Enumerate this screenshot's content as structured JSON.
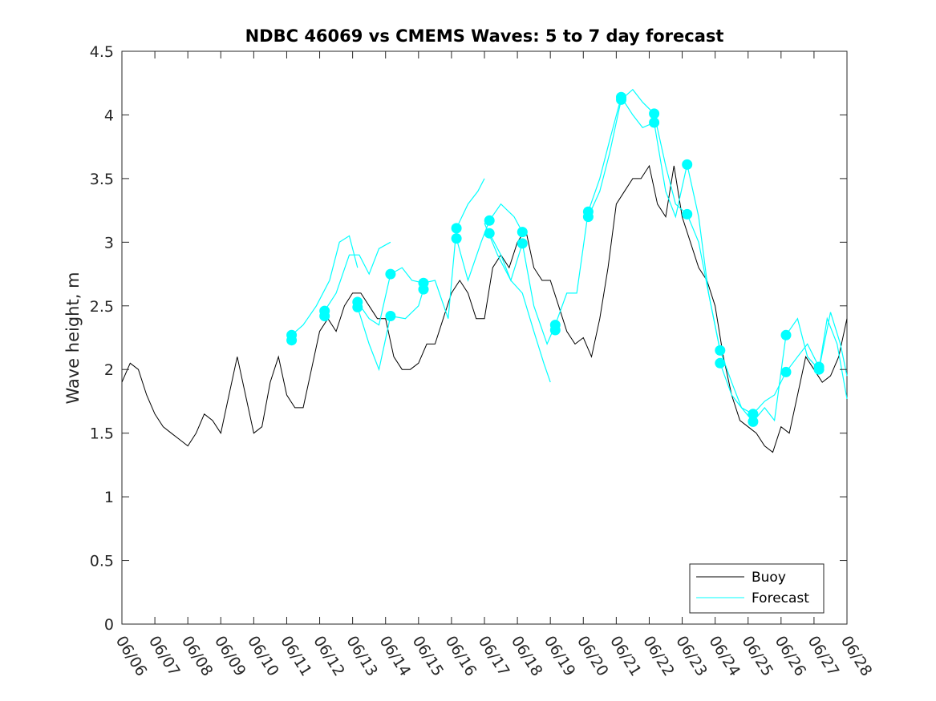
{
  "chart_data": {
    "type": "line",
    "title": "NDBC 46069 vs CMEMS Waves: 5 to 7 day forecast",
    "xlabel": "",
    "ylabel": "Wave height, m",
    "xlim": [
      "06/06",
      "06/28"
    ],
    "ylim": [
      0,
      4.5
    ],
    "x_ticks": [
      "06/06",
      "06/07",
      "06/08",
      "06/09",
      "06/10",
      "06/11",
      "06/12",
      "06/13",
      "06/14",
      "06/15",
      "06/16",
      "06/17",
      "06/18",
      "06/19",
      "06/20",
      "06/21",
      "06/22",
      "06/23",
      "06/24",
      "06/25",
      "06/26",
      "06/27",
      "06/28"
    ],
    "y_ticks": [
      "0",
      "0.5",
      "1",
      "1.5",
      "2",
      "2.5",
      "3",
      "3.5",
      "4",
      "4.5"
    ],
    "grid": false,
    "legend_position": "bottom-right",
    "colors": {
      "buoy": "#000000",
      "forecast": "#00FFFF",
      "axes": "#262626"
    },
    "series": [
      {
        "name": "Buoy",
        "x": [
          0,
          0.25,
          0.5,
          0.75,
          1,
          1.25,
          1.5,
          1.75,
          2,
          2.25,
          2.5,
          2.75,
          3,
          3.25,
          3.5,
          3.75,
          4,
          4.25,
          4.5,
          4.75,
          5,
          5.25,
          5.5,
          5.75,
          6,
          6.25,
          6.5,
          6.75,
          7,
          7.25,
          7.5,
          7.75,
          8,
          8.25,
          8.5,
          8.75,
          9,
          9.25,
          9.5,
          9.75,
          10,
          10.25,
          10.5,
          10.75,
          11,
          11.25,
          11.5,
          11.75,
          12,
          12.25,
          12.5,
          12.75,
          13,
          13.25,
          13.5,
          13.75,
          14,
          14.25,
          14.5,
          14.75,
          15,
          15.25,
          15.5,
          15.75,
          16,
          16.25,
          16.5,
          16.75,
          17,
          17.25,
          17.5,
          17.75,
          18,
          18.25,
          18.5,
          18.75,
          19,
          19.25,
          19.5,
          19.75,
          20,
          20.25,
          20.5,
          20.75,
          21,
          21.25,
          21.5,
          21.75,
          22
        ],
        "y": [
          1.9,
          2.05,
          2.0,
          1.8,
          1.65,
          1.55,
          1.5,
          1.45,
          1.4,
          1.5,
          1.65,
          1.6,
          1.5,
          1.8,
          2.1,
          1.8,
          1.5,
          1.55,
          1.9,
          2.1,
          1.8,
          1.7,
          1.7,
          2.0,
          2.3,
          2.4,
          2.3,
          2.5,
          2.6,
          2.6,
          2.5,
          2.4,
          2.4,
          2.1,
          2.0,
          2.0,
          2.05,
          2.2,
          2.2,
          2.4,
          2.6,
          2.7,
          2.6,
          2.4,
          2.4,
          2.8,
          2.9,
          2.8,
          3.0,
          3.1,
          2.8,
          2.7,
          2.7,
          2.5,
          2.3,
          2.2,
          2.25,
          2.1,
          2.4,
          2.8,
          3.3,
          3.4,
          3.5,
          3.5,
          3.6,
          3.3,
          3.2,
          3.6,
          3.2,
          3.0,
          2.8,
          2.7,
          2.5,
          2.1,
          1.8,
          1.6,
          1.55,
          1.5,
          1.4,
          1.35,
          1.55,
          1.5,
          1.8,
          2.1,
          2.0,
          1.9,
          1.95,
          2.1,
          2.4
        ]
      },
      {
        "name": "Forecast",
        "markers": [
          {
            "x": 5.15,
            "y": 2.27
          },
          {
            "x": 5.15,
            "y": 2.23
          },
          {
            "x": 6.15,
            "y": 2.46
          },
          {
            "x": 6.15,
            "y": 2.42
          },
          {
            "x": 7.15,
            "y": 2.53
          },
          {
            "x": 7.15,
            "y": 2.49
          },
          {
            "x": 8.15,
            "y": 2.75
          },
          {
            "x": 8.15,
            "y": 2.42
          },
          {
            "x": 9.15,
            "y": 2.68
          },
          {
            "x": 9.15,
            "y": 2.63
          },
          {
            "x": 10.15,
            "y": 3.11
          },
          {
            "x": 10.15,
            "y": 3.03
          },
          {
            "x": 11.15,
            "y": 3.17
          },
          {
            "x": 11.15,
            "y": 3.07
          },
          {
            "x": 12.15,
            "y": 3.08
          },
          {
            "x": 12.15,
            "y": 2.99
          },
          {
            "x": 13.15,
            "y": 2.35
          },
          {
            "x": 13.15,
            "y": 2.31
          },
          {
            "x": 14.15,
            "y": 3.24
          },
          {
            "x": 14.15,
            "y": 3.2
          },
          {
            "x": 15.15,
            "y": 4.14
          },
          {
            "x": 15.15,
            "y": 4.12
          },
          {
            "x": 16.15,
            "y": 4.01
          },
          {
            "x": 16.15,
            "y": 3.94
          },
          {
            "x": 17.15,
            "y": 3.61
          },
          {
            "x": 17.15,
            "y": 3.22
          },
          {
            "x": 18.15,
            "y": 2.15
          },
          {
            "x": 18.15,
            "y": 2.05
          },
          {
            "x": 19.15,
            "y": 1.65
          },
          {
            "x": 19.15,
            "y": 1.59
          },
          {
            "x": 20.15,
            "y": 2.27
          },
          {
            "x": 20.15,
            "y": 1.98
          },
          {
            "x": 21.15,
            "y": 2.02
          },
          {
            "x": 21.15,
            "y": 2.0
          }
        ],
        "traces": [
          {
            "x": [
              5.15,
              5.5,
              5.9,
              6.3,
              6.6,
              6.9,
              7.15
            ],
            "y": [
              2.27,
              2.35,
              2.5,
              2.7,
              3.0,
              3.05,
              2.8
            ]
          },
          {
            "x": [
              6.15,
              6.5,
              6.9,
              7.2,
              7.5,
              7.8,
              8.15
            ],
            "y": [
              2.46,
              2.6,
              2.9,
              2.9,
              2.75,
              2.95,
              3.0
            ]
          },
          {
            "x": [
              7.15,
              7.5,
              7.8,
              8.15,
              8.5,
              8.8,
              9.15
            ],
            "y": [
              2.53,
              2.4,
              2.35,
              2.75,
              2.8,
              2.7,
              2.68
            ]
          },
          {
            "x": [
              7.15,
              7.5,
              7.8,
              8.15,
              8.6,
              9.0,
              9.15
            ],
            "y": [
              2.49,
              2.2,
              2.0,
              2.42,
              2.4,
              2.5,
              2.63
            ]
          },
          {
            "x": [
              9.15,
              9.5,
              9.9,
              10.15,
              10.5,
              10.8,
              11.0
            ],
            "y": [
              2.68,
              2.7,
              2.4,
              3.11,
              3.3,
              3.4,
              3.5
            ]
          },
          {
            "x": [
              10.15,
              10.5,
              10.9,
              11.15,
              11.5,
              11.9,
              12.15
            ],
            "y": [
              3.03,
              2.7,
              3.0,
              3.17,
              3.3,
              3.2,
              3.08
            ]
          },
          {
            "x": [
              11.15,
              11.5,
              11.8,
              12.15,
              12.5,
              12.9,
              13.15
            ],
            "y": [
              3.07,
              2.9,
              2.7,
              2.99,
              2.5,
              2.2,
              2.35
            ]
          },
          {
            "x": [
              11.0,
              11.4,
              11.8,
              12.15,
              12.5,
              12.8,
              13.0
            ],
            "y": [
              3.15,
              2.9,
              2.7,
              2.6,
              2.3,
              2.05,
              1.9
            ]
          },
          {
            "x": [
              13.15,
              13.5,
              13.8,
              14.15,
              14.5,
              14.8,
              15.15
            ],
            "y": [
              2.35,
              2.6,
              2.6,
              3.24,
              3.5,
              3.8,
              4.14
            ]
          },
          {
            "x": [
              14.15,
              14.5,
              14.8,
              15.15,
              15.5,
              15.8,
              16.15
            ],
            "y": [
              3.2,
              3.4,
              3.7,
              4.12,
              4.2,
              4.1,
              4.01
            ]
          },
          {
            "x": [
              15.15,
              15.5,
              15.8,
              16.15,
              16.5,
              16.8,
              17.15
            ],
            "y": [
              4.14,
              4.0,
              3.9,
              3.94,
              3.4,
              3.2,
              3.61
            ]
          },
          {
            "x": [
              16.15,
              16.5,
              16.8,
              17.15,
              17.5,
              17.8,
              18.15
            ],
            "y": [
              4.01,
              3.6,
              3.3,
              3.22,
              3.0,
              2.6,
              2.15
            ]
          },
          {
            "x": [
              17.15,
              17.5,
              17.8,
              18.15,
              18.5,
              18.8,
              19.15
            ],
            "y": [
              3.61,
              3.2,
              2.6,
              2.15,
              1.9,
              1.7,
              1.65
            ]
          },
          {
            "x": [
              18.15,
              18.5,
              18.8,
              19.15,
              19.5,
              19.8,
              20.15
            ],
            "y": [
              2.05,
              1.8,
              1.7,
              1.59,
              1.7,
              1.6,
              2.27
            ]
          },
          {
            "x": [
              19.15,
              19.5,
              19.8,
              20.15,
              20.5,
              20.8,
              21.15
            ],
            "y": [
              1.65,
              1.75,
              1.8,
              1.98,
              2.1,
              2.2,
              2.02
            ]
          },
          {
            "x": [
              20.15,
              20.5,
              20.8,
              21.15,
              21.5,
              21.8,
              22.0
            ],
            "y": [
              2.27,
              2.4,
              2.1,
              2.0,
              2.45,
              2.2,
              1.95
            ]
          },
          {
            "x": [
              21.15,
              21.4,
              21.7,
              22.0
            ],
            "y": [
              2.0,
              2.4,
              2.2,
              1.77
            ]
          }
        ]
      }
    ]
  }
}
